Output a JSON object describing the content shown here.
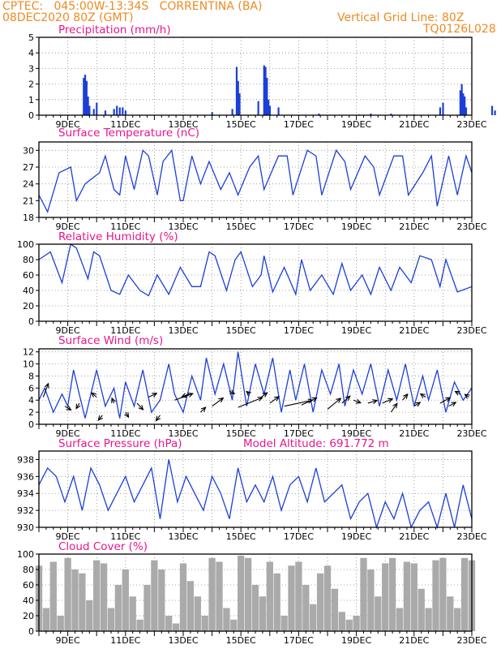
{
  "header": {
    "line1_left": "CPTEC:   045:00W-13:34S   CORRENTINA (BA)",
    "line2_left": "08DEC2020 80Z (GMT)",
    "line1_right": "Vertical Grid Line: 80Z",
    "line2_right": "TQ0126L028"
  },
  "colors": {
    "header": "#ee8a22",
    "title": "#e8168c",
    "series": "#1c3fd8",
    "cloud": "#aaaaaa"
  },
  "x_axis": {
    "labels": [
      "9DEC",
      "11DEC",
      "13DEC",
      "15DEC",
      "17DEC",
      "19DEC",
      "21DEC",
      "23DEC"
    ]
  },
  "chart_data": [
    {
      "type": "bar",
      "title": "Precipitation (mm/h)",
      "ylim": [
        0,
        5
      ],
      "yticks": [
        0,
        1,
        2,
        3,
        4,
        5
      ],
      "x_unit": "days since 08DEC2020 00Z",
      "bars": [
        [
          1.55,
          2.4
        ],
        [
          1.6,
          2.6
        ],
        [
          1.65,
          2.2
        ],
        [
          1.7,
          1.2
        ],
        [
          1.75,
          0.6
        ],
        [
          1.9,
          0.4
        ],
        [
          2.0,
          0.8
        ],
        [
          2.3,
          0.3
        ],
        [
          2.6,
          0.4
        ],
        [
          2.7,
          0.6
        ],
        [
          2.8,
          0.5
        ],
        [
          2.9,
          0.5
        ],
        [
          3.0,
          0.3
        ],
        [
          6.0,
          0.2
        ],
        [
          6.7,
          0.4
        ],
        [
          6.85,
          3.1
        ],
        [
          6.9,
          2.2
        ],
        [
          6.95,
          1.4
        ],
        [
          7.6,
          0.9
        ],
        [
          7.8,
          3.2
        ],
        [
          7.85,
          3.1
        ],
        [
          7.9,
          2.4
        ],
        [
          7.95,
          1.0
        ],
        [
          8.0,
          0.6
        ],
        [
          8.3,
          0.5
        ],
        [
          9.7,
          0.1
        ],
        [
          11.1,
          0.05
        ],
        [
          11.5,
          0.1
        ],
        [
          12.2,
          0.1
        ],
        [
          13.0,
          0.05
        ],
        [
          13.9,
          0.5
        ],
        [
          14.0,
          0.8
        ],
        [
          14.6,
          1.6
        ],
        [
          14.65,
          2.0
        ],
        [
          14.7,
          1.4
        ],
        [
          14.75,
          1.2
        ],
        [
          14.8,
          0.5
        ],
        [
          15.7,
          0.6
        ],
        [
          15.8,
          0.3
        ]
      ]
    },
    {
      "type": "line",
      "title": "Surface Temperature (nC)",
      "ylim": [
        18,
        31.5
      ],
      "yticks": [
        18,
        21,
        24,
        27,
        30
      ],
      "x": [
        0,
        0.3,
        0.7,
        1.1,
        1.3,
        1.6,
        2.1,
        2.3,
        2.6,
        2.8,
        3.0,
        3.3,
        3.6,
        3.8,
        4.1,
        4.3,
        4.6,
        4.9,
        5.0,
        5.3,
        5.6,
        5.9,
        6.3,
        6.6,
        6.9,
        7.3,
        7.6,
        7.8,
        8.3,
        8.6,
        8.8,
        9.3,
        9.6,
        9.8,
        10.3,
        10.6,
        10.8,
        11.3,
        11.6,
        11.8,
        12.3,
        12.6,
        12.8,
        13.3,
        13.6,
        13.8,
        14.2,
        14.5,
        14.8,
        15.0
      ],
      "values": [
        22,
        19,
        26,
        27,
        21,
        24,
        26,
        29,
        23,
        22,
        29,
        23,
        30,
        29,
        22,
        28,
        30,
        21,
        21,
        29,
        24,
        28,
        23,
        26,
        22,
        27,
        29,
        23,
        29,
        29,
        22,
        30,
        29,
        22,
        30,
        28,
        23,
        29,
        27,
        22,
        29,
        29,
        22,
        26,
        29,
        20,
        29,
        22,
        29,
        26
      ]
    },
    {
      "type": "line",
      "title": "Relative Humidity (%)",
      "ylim": [
        0,
        100
      ],
      "yticks": [
        0,
        20,
        40,
        60,
        80,
        100
      ],
      "x": [
        0,
        0.4,
        0.8,
        1.1,
        1.3,
        1.7,
        1.9,
        2.1,
        2.5,
        2.8,
        3.1,
        3.5,
        3.8,
        4.1,
        4.5,
        4.9,
        5.3,
        5.6,
        5.9,
        6.1,
        6.5,
        6.8,
        7.0,
        7.4,
        7.7,
        7.8,
        8.1,
        8.5,
        8.9,
        9.1,
        9.4,
        9.8,
        10.2,
        10.5,
        10.8,
        11.2,
        11.5,
        11.8,
        12.2,
        12.5,
        12.9,
        13.2,
        13.6,
        13.9,
        14.1,
        14.5,
        15.0
      ],
      "values": [
        80,
        90,
        50,
        100,
        95,
        55,
        90,
        85,
        40,
        35,
        60,
        40,
        33,
        60,
        35,
        70,
        45,
        45,
        90,
        85,
        40,
        80,
        90,
        45,
        60,
        85,
        38,
        70,
        35,
        80,
        40,
        60,
        35,
        75,
        40,
        60,
        35,
        70,
        40,
        70,
        50,
        85,
        80,
        45,
        80,
        38,
        45
      ]
    },
    {
      "type": "line",
      "title": "Surface Wind (m/s)",
      "ylim": [
        0,
        12.5
      ],
      "yticks": [
        0,
        2,
        4,
        6,
        8,
        10,
        12
      ],
      "x": [
        0,
        0.2,
        0.5,
        0.8,
        1.0,
        1.2,
        1.4,
        1.6,
        1.8,
        2.0,
        2.3,
        2.6,
        2.8,
        3.0,
        3.3,
        3.6,
        3.9,
        4.2,
        4.5,
        4.7,
        5.0,
        5.3,
        5.6,
        5.8,
        6.1,
        6.4,
        6.7,
        6.9,
        7.2,
        7.5,
        7.8,
        8.1,
        8.4,
        8.7,
        8.9,
        9.2,
        9.5,
        9.8,
        10.1,
        10.4,
        10.6,
        10.9,
        11.2,
        11.5,
        11.8,
        12.1,
        12.4,
        12.7,
        13.0,
        13.3,
        13.5,
        13.8,
        14.1,
        14.4,
        14.7,
        15.0
      ],
      "values": [
        4,
        6,
        2,
        5,
        3,
        9,
        5,
        1,
        5,
        9,
        3,
        6,
        1,
        7,
        3,
        9,
        2,
        4,
        10,
        5,
        2,
        8,
        4,
        11,
        5,
        10,
        4,
        12,
        3,
        10,
        5,
        11,
        2,
        9,
        4,
        10,
        2,
        9,
        5,
        10,
        3,
        9,
        5,
        10,
        3,
        9,
        4,
        10,
        3,
        8,
        4,
        9,
        2,
        7,
        4,
        6
      ],
      "arrows": [
        [
          0.15,
          4.5,
          0.5,
          2.5
        ],
        [
          0.9,
          3.0,
          0.6,
          -0.7
        ],
        [
          1.4,
          3.5,
          -0.3,
          -1.0
        ],
        [
          2.0,
          4.5,
          -0.5,
          0.8
        ],
        [
          2.2,
          1.5,
          -0.4,
          -0.9
        ],
        [
          2.6,
          3.5,
          -0.2,
          0.9
        ],
        [
          3.0,
          2.0,
          0.3,
          -0.9
        ],
        [
          3.4,
          3.5,
          0.6,
          -1.2
        ],
        [
          3.8,
          4.5,
          0.8,
          0.7
        ],
        [
          4.2,
          1.5,
          -0.4,
          -1.0
        ],
        [
          4.7,
          4.0,
          1.8,
          1.2
        ],
        [
          5.2,
          5.0,
          -0.7,
          -0.5
        ],
        [
          5.6,
          2.0,
          0.5,
          0.9
        ],
        [
          6.0,
          3.0,
          1.1,
          1.5
        ],
        [
          6.6,
          5.5,
          0.5,
          -0.5
        ],
        [
          6.9,
          2.8,
          2.4,
          1.8
        ],
        [
          7.3,
          5.0,
          -0.3,
          0.5
        ],
        [
          7.7,
          4.5,
          0.6,
          0.8
        ],
        [
          8.0,
          3.5,
          0.9,
          1.2
        ],
        [
          8.5,
          3.0,
          2.8,
          1.1
        ],
        [
          9.1,
          3.2,
          1.5,
          1.3
        ],
        [
          10.0,
          2.5,
          1.3,
          2.0
        ],
        [
          10.5,
          3.5,
          0.8,
          1.3
        ],
        [
          10.9,
          4.0,
          0.7,
          -0.5
        ],
        [
          11.4,
          3.5,
          0.9,
          0.5
        ],
        [
          11.9,
          3.5,
          1.0,
          0.8
        ],
        [
          12.2,
          2.0,
          0.6,
          1.6
        ],
        [
          12.6,
          4.0,
          0.5,
          1.1
        ],
        [
          13.0,
          3.0,
          0.6,
          0.7
        ],
        [
          13.4,
          4.5,
          -0.5,
          0.6
        ],
        [
          13.9,
          3.5,
          1.0,
          1.0
        ],
        [
          14.2,
          3.0,
          0.7,
          0.7
        ],
        [
          14.6,
          5.0,
          -0.5,
          0.5
        ],
        [
          14.9,
          4.5,
          -0.4,
          0.5
        ]
      ]
    },
    {
      "type": "line",
      "title": "Surface Pressure (hPa)",
      "annotation": "Model Altitude: 691.772  m",
      "ylim": [
        930,
        939
      ],
      "yticks": [
        930,
        932,
        934,
        936,
        938
      ],
      "x": [
        0,
        0.3,
        0.6,
        0.9,
        1.2,
        1.5,
        1.8,
        2.1,
        2.4,
        2.7,
        3.0,
        3.3,
        3.6,
        3.9,
        4.2,
        4.5,
        4.8,
        5.1,
        5.4,
        5.7,
        6.0,
        6.3,
        6.6,
        6.9,
        7.2,
        7.5,
        7.8,
        8.1,
        8.4,
        8.7,
        9.0,
        9.3,
        9.6,
        9.9,
        10.2,
        10.5,
        10.8,
        11.1,
        11.4,
        11.7,
        12.0,
        12.3,
        12.6,
        12.9,
        13.2,
        13.5,
        13.8,
        14.1,
        14.4,
        14.7,
        15.0
      ],
      "values": [
        935,
        937,
        936,
        933,
        936,
        932,
        937,
        935,
        932,
        934,
        936,
        933,
        935,
        937,
        931,
        938,
        933,
        936,
        934,
        932,
        936,
        934,
        931,
        937,
        933,
        935,
        933,
        936,
        932,
        935,
        936,
        933,
        937,
        933,
        934,
        935,
        931,
        933,
        934,
        930,
        933,
        931,
        934,
        930,
        932,
        933,
        930,
        934,
        930,
        935,
        931
      ]
    },
    {
      "type": "bar",
      "title": "Cloud Cover (%)",
      "ylim": [
        0,
        100
      ],
      "yticks": [
        0,
        20,
        40,
        60,
        80,
        100
      ],
      "x": [
        0.0,
        0.25,
        0.5,
        0.75,
        1.0,
        1.25,
        1.5,
        1.75,
        2.0,
        2.25,
        2.5,
        2.75,
        3.0,
        3.25,
        3.5,
        3.75,
        4.0,
        4.25,
        4.5,
        4.75,
        5.0,
        5.25,
        5.5,
        5.75,
        6.0,
        6.25,
        6.5,
        6.75,
        7.0,
        7.25,
        7.5,
        7.75,
        8.0,
        8.25,
        8.5,
        8.75,
        9.0,
        9.25,
        9.5,
        9.75,
        10.0,
        10.25,
        10.5,
        10.75,
        11.0,
        11.25,
        11.5,
        11.75,
        12.0,
        12.25,
        12.5,
        12.75,
        13.0,
        13.25,
        13.5,
        13.75,
        14.0,
        14.25,
        14.5,
        14.75,
        15.0
      ],
      "values": [
        85,
        30,
        90,
        20,
        95,
        80,
        75,
        40,
        92,
        88,
        30,
        60,
        80,
        45,
        15,
        60,
        92,
        80,
        20,
        10,
        88,
        65,
        45,
        20,
        95,
        90,
        30,
        15,
        98,
        95,
        60,
        45,
        90,
        75,
        20,
        85,
        90,
        60,
        35,
        75,
        85,
        55,
        25,
        15,
        20,
        95,
        80,
        45,
        88,
        95,
        30,
        90,
        88,
        55,
        30,
        92,
        95,
        45,
        30,
        95,
        92
      ]
    }
  ]
}
